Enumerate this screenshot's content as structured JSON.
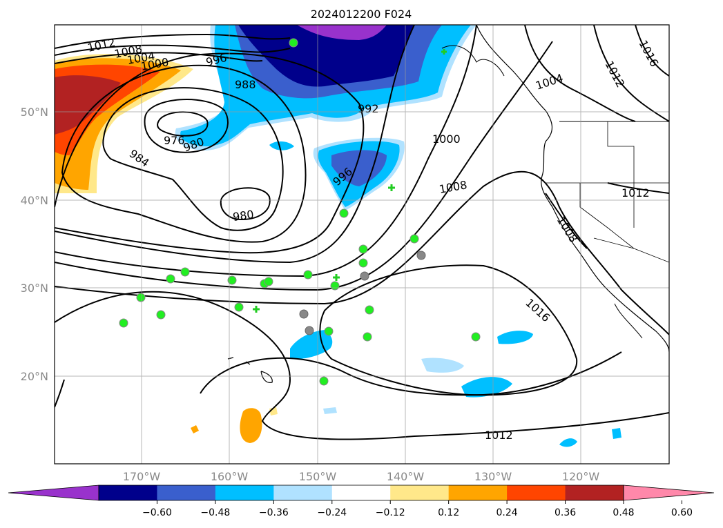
{
  "title": "2024012200 F024",
  "map": {
    "lat_labels": [
      "50°N",
      "40°N",
      "30°N",
      "20°N"
    ],
    "lon_labels": [
      "170°W",
      "160°W",
      "150°W",
      "140°W",
      "130°W",
      "120°W"
    ],
    "contour_labels": [
      "1012",
      "1008",
      "1004",
      "1000",
      "996",
      "988",
      "992",
      "976",
      "980",
      "984",
      "980",
      "1000",
      "996",
      "1008",
      "1004",
      "1012",
      "1016",
      "1012",
      "1008",
      "1016",
      "1012"
    ],
    "colors": {
      "neg_deep": "#9932cc",
      "neg_navy": "#00008b",
      "neg_mid": "#3a5fcd",
      "neg_sky": "#00bfff",
      "neg_light": "#b0e2ff",
      "pos_light": "#ffe88a",
      "pos_orange": "#ffa500",
      "pos_red": "#ff4500",
      "pos_dark": "#b22222",
      "station_green": "#22ee22",
      "station_gray": "#888888"
    }
  },
  "colorbar": {
    "ticks": [
      "−0.60",
      "−0.48",
      "−0.36",
      "−0.24",
      "−0.12",
      "0.12",
      "0.24",
      "0.36",
      "0.48",
      "0.60"
    ],
    "bins": [
      "#9932cc",
      "#00008b",
      "#3a5fcd",
      "#00bfff",
      "#b0e2ff",
      "#ffffff",
      "#ffe88a",
      "#ffa500",
      "#ff4500",
      "#b22222",
      "#ff88aa"
    ]
  }
}
